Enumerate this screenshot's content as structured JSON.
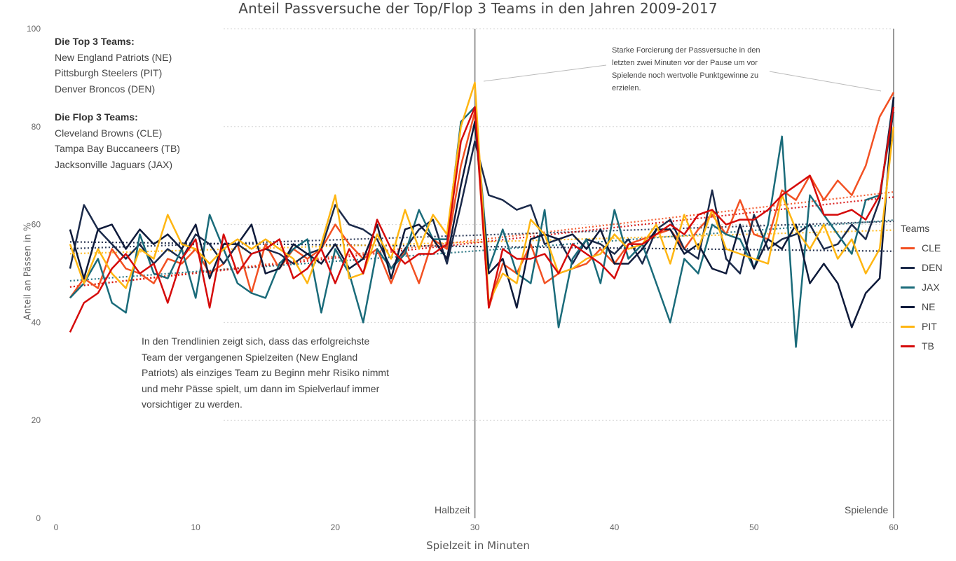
{
  "chart_data": {
    "type": "line",
    "title": "Anteil Passversuche der Top/Flop 3 Teams in den Jahren 2009-2017",
    "xlabel": "Spielzeit in Minuten",
    "ylabel": "Anteil an Pässen in %",
    "xlim": [
      0,
      60
    ],
    "ylim": [
      0,
      100
    ],
    "x_ticks": [
      0,
      10,
      20,
      30,
      40,
      50,
      60
    ],
    "y_ticks": [
      0,
      20,
      40,
      60,
      80,
      100
    ],
    "grid": "horizontal dotted",
    "legend_title": "Teams",
    "legend_position": "right",
    "x": [
      1,
      2,
      3,
      4,
      5,
      6,
      7,
      8,
      9,
      10,
      11,
      12,
      13,
      14,
      15,
      16,
      17,
      18,
      19,
      20,
      21,
      22,
      23,
      24,
      25,
      26,
      27,
      28,
      29,
      30,
      31,
      32,
      33,
      34,
      35,
      36,
      37,
      38,
      39,
      40,
      41,
      42,
      43,
      44,
      45,
      46,
      47,
      48,
      49,
      50,
      51,
      52,
      53,
      54,
      55,
      56,
      57,
      58,
      59,
      60
    ],
    "series": [
      {
        "name": "CLE",
        "color": "#F25022",
        "values": [
          45,
          49,
          47,
          55,
          51,
          50,
          48,
          53,
          52,
          55,
          50,
          52,
          56,
          46,
          56,
          51,
          55,
          53,
          55,
          60,
          56,
          53,
          55,
          48,
          55,
          48,
          57,
          55,
          72,
          83,
          43,
          52,
          50,
          56,
          48,
          50,
          51,
          52,
          55,
          52,
          56,
          57,
          58,
          59,
          55,
          59,
          62,
          58,
          65,
          58,
          57,
          67,
          65,
          70,
          65,
          69,
          66,
          72,
          82,
          87
        ]
      },
      {
        "name": "DEN",
        "color": "#1B2A4A",
        "values": [
          51,
          64,
          59,
          56,
          53,
          56,
          52,
          55,
          53,
          58,
          56,
          52,
          56,
          54,
          55,
          54,
          52,
          54,
          55,
          64,
          60,
          59,
          57,
          51,
          55,
          59,
          61,
          52,
          64,
          77,
          66,
          65,
          63,
          64,
          56,
          57,
          52,
          57,
          56,
          54,
          57,
          52,
          59,
          61,
          55,
          53,
          67,
          53,
          50,
          62,
          55,
          57,
          58,
          60,
          55,
          56,
          60,
          57,
          65,
          86
        ]
      },
      {
        "name": "JAX",
        "color": "#1A6B7A",
        "values": [
          45,
          48,
          53,
          44,
          42,
          58,
          50,
          49,
          55,
          45,
          62,
          55,
          48,
          46,
          45,
          52,
          55,
          57,
          42,
          55,
          50,
          40,
          55,
          51,
          54,
          63,
          57,
          57,
          81,
          84,
          51,
          59,
          50,
          48,
          63,
          39,
          53,
          57,
          48,
          63,
          53,
          56,
          48,
          40,
          53,
          50,
          60,
          58,
          57,
          51,
          60,
          78,
          35,
          66,
          62,
          58,
          54,
          65,
          66,
          83
        ]
      },
      {
        "name": "NE",
        "color": "#0E1A3A",
        "values": [
          59,
          49,
          59,
          60,
          55,
          59,
          56,
          58,
          55,
          60,
          49,
          56,
          56,
          60,
          50,
          51,
          56,
          54,
          52,
          56,
          51,
          53,
          60,
          49,
          59,
          60,
          57,
          53,
          68,
          81,
          50,
          53,
          43,
          57,
          58,
          57,
          58,
          55,
          59,
          52,
          52,
          55,
          59,
          59,
          54,
          56,
          51,
          50,
          60,
          51,
          57,
          55,
          60,
          48,
          52,
          48,
          39,
          46,
          49,
          86
        ]
      },
      {
        "name": "PIT",
        "color": "#FFB612",
        "values": [
          56,
          48,
          55,
          50,
          47,
          55,
          53,
          62,
          56,
          55,
          52,
          55,
          57,
          55,
          57,
          55,
          53,
          48,
          56,
          66,
          49,
          50,
          58,
          53,
          63,
          55,
          62,
          58,
          80,
          89,
          44,
          50,
          48,
          61,
          58,
          50,
          51,
          53,
          54,
          58,
          55,
          56,
          60,
          52,
          62,
          55,
          63,
          55,
          54,
          53,
          52,
          66,
          59,
          55,
          60,
          53,
          57,
          50,
          55,
          80
        ]
      },
      {
        "name": "TB",
        "color": "#D50A0A",
        "values": [
          38,
          44,
          46,
          51,
          54,
          50,
          52,
          44,
          53,
          57,
          43,
          58,
          50,
          54,
          55,
          57,
          49,
          51,
          55,
          48,
          55,
          50,
          61,
          55,
          52,
          54,
          54,
          56,
          77,
          84,
          43,
          55,
          53,
          53,
          54,
          50,
          56,
          54,
          52,
          49,
          56,
          56,
          58,
          60,
          58,
          62,
          63,
          60,
          61,
          61,
          63,
          66,
          68,
          70,
          62,
          62,
          63,
          61,
          66,
          84
        ]
      }
    ],
    "trendlines": {
      "style": "dotted",
      "per_series": true
    },
    "markers": [
      {
        "x": 30,
        "label": "Halbzeit"
      },
      {
        "x": 60,
        "label": "Spielende"
      }
    ]
  },
  "annotations": {
    "top3_heading": "Die Top 3 Teams:",
    "top3": [
      "New England Patriots (NE)",
      "Pittsburgh Steelers (PIT)",
      "Denver Broncos (DEN)"
    ],
    "flop3_heading": "Die Flop 3 Teams:",
    "flop3": [
      "Cleveland Browns (CLE)",
      "Tampa Bay Buccaneers (TB)",
      "Jacksonville Jaguars (JAX)"
    ],
    "trend_note": "In den Trendlinien zeigt sich, dass das erfolgreichste Team der vergangenen Spielzeiten (New England Patriots) als einziges Team zu Beginn mehr Risiko nimmt und mehr Pässe spielt, um dann im Spielverlauf immer vorsichtiger zu werden.",
    "top_note": "Starke Forcierung der Passversuche in den letzten zwei Minuten vor der Pause um vor Spielende noch wertvolle Punktgewinne zu erzielen."
  }
}
